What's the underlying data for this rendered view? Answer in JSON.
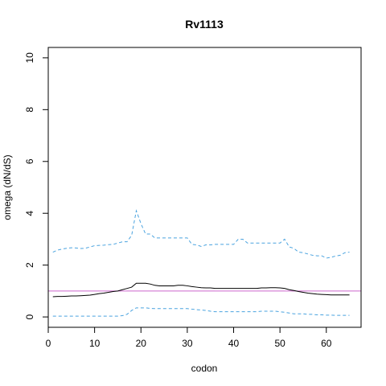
{
  "chart_data": {
    "type": "line",
    "title": "Rv1113",
    "xlabel": "codon",
    "ylabel": "omega (dN/dS)",
    "xlim": [
      0,
      67.5
    ],
    "ylim": [
      -0.4,
      10.4
    ],
    "x_ticks": [
      "0",
      "10",
      "20",
      "30",
      "40",
      "50",
      "60"
    ],
    "y_ticks": [
      "0",
      "2",
      "4",
      "6",
      "8",
      "10"
    ],
    "reference_line": {
      "y": 1,
      "color": "#cc66cc"
    },
    "series": [
      {
        "role": "upper-bound",
        "color": "#4aa3df",
        "dashed": true,
        "x": [
          1,
          2,
          3,
          4,
          5,
          6,
          7,
          8,
          9,
          10,
          11,
          12,
          13,
          14,
          15,
          16,
          17,
          18,
          19,
          20,
          21,
          22,
          23,
          24,
          25,
          26,
          27,
          28,
          29,
          30,
          31,
          32,
          33,
          34,
          35,
          36,
          37,
          38,
          39,
          40,
          41,
          42,
          43,
          44,
          45,
          46,
          47,
          48,
          49,
          50,
          51,
          52,
          53,
          54,
          55,
          56,
          57,
          58,
          59,
          60,
          61,
          62,
          63,
          64,
          65
        ],
        "values": [
          2.5,
          2.58,
          2.62,
          2.65,
          2.67,
          2.66,
          2.64,
          2.65,
          2.7,
          2.75,
          2.76,
          2.77,
          2.79,
          2.8,
          2.85,
          2.9,
          2.9,
          3.15,
          4.1,
          3.6,
          3.2,
          3.2,
          3.05,
          3.05,
          3.05,
          3.05,
          3.05,
          3.05,
          3.05,
          3.05,
          2.8,
          2.78,
          2.72,
          2.78,
          2.78,
          2.8,
          2.8,
          2.8,
          2.8,
          2.8,
          3.0,
          3.0,
          2.85,
          2.85,
          2.85,
          2.85,
          2.85,
          2.85,
          2.85,
          2.85,
          3.0,
          2.7,
          2.65,
          2.5,
          2.48,
          2.43,
          2.38,
          2.36,
          2.36,
          2.27,
          2.3,
          2.35,
          2.38,
          2.48,
          2.5
        ]
      },
      {
        "role": "omega-estimate",
        "color": "#000000",
        "dashed": false,
        "x": [
          1,
          2,
          3,
          4,
          5,
          6,
          7,
          8,
          9,
          10,
          11,
          12,
          13,
          14,
          15,
          16,
          17,
          18,
          19,
          20,
          21,
          22,
          23,
          24,
          25,
          26,
          27,
          28,
          29,
          30,
          31,
          32,
          33,
          34,
          35,
          36,
          37,
          38,
          39,
          40,
          41,
          42,
          43,
          44,
          45,
          46,
          47,
          48,
          49,
          50,
          51,
          52,
          53,
          54,
          55,
          56,
          57,
          58,
          59,
          60,
          61,
          62,
          63,
          64,
          65
        ],
        "values": [
          0.78,
          0.79,
          0.79,
          0.8,
          0.81,
          0.81,
          0.82,
          0.83,
          0.84,
          0.87,
          0.9,
          0.92,
          0.95,
          0.98,
          1.0,
          1.05,
          1.1,
          1.15,
          1.3,
          1.3,
          1.3,
          1.27,
          1.22,
          1.2,
          1.2,
          1.2,
          1.2,
          1.22,
          1.22,
          1.2,
          1.17,
          1.15,
          1.13,
          1.12,
          1.12,
          1.1,
          1.1,
          1.1,
          1.1,
          1.1,
          1.1,
          1.1,
          1.1,
          1.1,
          1.1,
          1.12,
          1.12,
          1.13,
          1.13,
          1.12,
          1.1,
          1.05,
          1.02,
          0.98,
          0.95,
          0.92,
          0.9,
          0.88,
          0.87,
          0.86,
          0.85,
          0.85,
          0.85,
          0.85,
          0.85
        ]
      },
      {
        "role": "lower-bound",
        "color": "#4aa3df",
        "dashed": true,
        "x": [
          1,
          2,
          3,
          4,
          5,
          6,
          7,
          8,
          9,
          10,
          11,
          12,
          13,
          14,
          15,
          16,
          17,
          18,
          19,
          20,
          21,
          22,
          23,
          24,
          25,
          26,
          27,
          28,
          29,
          30,
          31,
          32,
          33,
          34,
          35,
          36,
          37,
          38,
          39,
          40,
          41,
          42,
          43,
          44,
          45,
          46,
          47,
          48,
          49,
          50,
          51,
          52,
          53,
          54,
          55,
          56,
          57,
          58,
          59,
          60,
          61,
          62,
          63,
          64,
          65
        ],
        "values": [
          0.03,
          0.03,
          0.03,
          0.03,
          0.03,
          0.03,
          0.03,
          0.03,
          0.03,
          0.03,
          0.03,
          0.03,
          0.03,
          0.03,
          0.03,
          0.05,
          0.1,
          0.25,
          0.35,
          0.35,
          0.35,
          0.33,
          0.32,
          0.32,
          0.32,
          0.32,
          0.32,
          0.32,
          0.32,
          0.32,
          0.3,
          0.28,
          0.27,
          0.25,
          0.22,
          0.2,
          0.2,
          0.2,
          0.2,
          0.2,
          0.2,
          0.2,
          0.2,
          0.2,
          0.2,
          0.22,
          0.22,
          0.22,
          0.22,
          0.2,
          0.18,
          0.15,
          0.12,
          0.12,
          0.12,
          0.1,
          0.1,
          0.08,
          0.08,
          0.07,
          0.07,
          0.06,
          0.06,
          0.06,
          0.06
        ]
      }
    ]
  }
}
